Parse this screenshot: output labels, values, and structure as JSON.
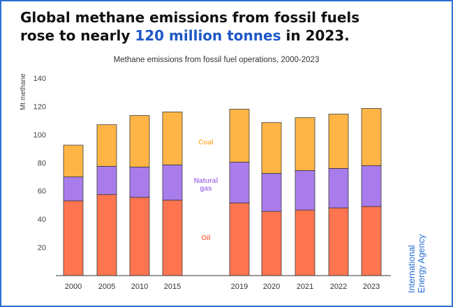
{
  "headline": {
    "line1": "Global methane emissions from fossil fuels",
    "line2_before": "rose to nearly ",
    "line2_highlight": "120 million tonnes",
    "line2_after": " in 2023."
  },
  "brand": {
    "line1": "International",
    "line2": "Energy Agency"
  },
  "colors": {
    "oil": "#ff7550",
    "gas": "#a97cec",
    "coal": "#ffb545",
    "highlight": "#1f58c7"
  },
  "chart_data": {
    "type": "bar",
    "stacked": true,
    "title": "Methane emissions from fossil fuel operations, 2000-2023",
    "ylabel": "Mt methane",
    "xlabel": "",
    "ylim": [
      0,
      140
    ],
    "yticks": [
      20,
      40,
      60,
      80,
      100,
      120,
      140
    ],
    "grid": false,
    "categories": [
      "2000",
      "2005",
      "2010",
      "2015",
      "2019",
      "2020",
      "2021",
      "2022",
      "2023"
    ],
    "series": [
      {
        "name": "Oil",
        "color": "#ff7550",
        "values": [
          53,
          57.5,
          55.5,
          53.5,
          51.5,
          45.5,
          46.5,
          48,
          49
        ]
      },
      {
        "name": "Natural gas",
        "color": "#a97cec",
        "values": [
          17,
          20,
          21.5,
          25,
          29,
          27,
          28,
          28,
          29
        ]
      },
      {
        "name": "Coal",
        "color": "#ffb545",
        "values": [
          22.5,
          29.5,
          36.5,
          37.5,
          37.5,
          36,
          37.5,
          38.5,
          40.5
        ]
      }
    ],
    "annotations": [
      {
        "text": "Coal",
        "series": "Coal"
      },
      {
        "text": "Natural",
        "series": "Natural gas"
      },
      {
        "text": "gas",
        "series": "Natural gas"
      },
      {
        "text": "Oil",
        "series": "Oil"
      }
    ]
  }
}
